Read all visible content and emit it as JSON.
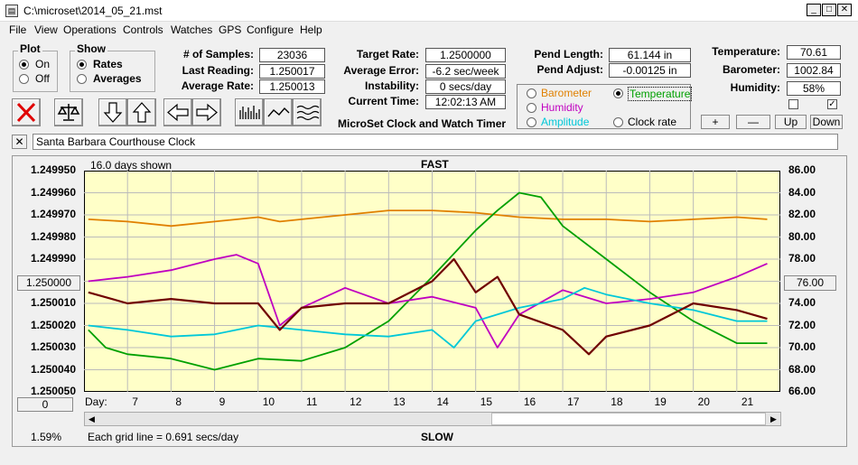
{
  "window": {
    "title": "C:\\microset\\2014_05_21.mst",
    "min": "_",
    "max": "□",
    "close": "✕"
  },
  "menu": [
    "File",
    "View",
    "Operations",
    "Controls",
    "Watches",
    "GPS",
    "Configure",
    "Help"
  ],
  "plot_group": {
    "title": "Plot",
    "on": "On",
    "off": "Off",
    "selected": "On"
  },
  "show_group": {
    "title": "Show",
    "rates": "Rates",
    "averages": "Averages",
    "selected": "Rates"
  },
  "stats": {
    "samples_label": "# of Samples:",
    "samples": "23036",
    "last_label": "Last Reading:",
    "last": "1.250017",
    "avg_label": "Average Rate:",
    "avg": "1.250013",
    "target_label": "Target Rate:",
    "target": "1.2500000",
    "err_label": "Average Error:",
    "err": "-6.2 sec/week",
    "instab_label": "Instability:",
    "instab": "0 secs/day",
    "time_label": "Current Time:",
    "time": "12:02:13 AM",
    "pend_len_label": "Pend Length:",
    "pend_len": "61.144 in",
    "pend_adj_label": "Pend Adjust:",
    "pend_adj": "-0.00125 in",
    "temp_label": "Temperature:",
    "temp": "70.61",
    "baro_label": "Barometer:",
    "baro": "1002.84",
    "hum_label": "Humidity:",
    "hum": "58%"
  },
  "app_caption": "MicroSet Clock and Watch Timer",
  "aux": {
    "barometer": "Barometer",
    "temperature": "Temperature",
    "humidity": "Humidity",
    "amplitude": "Amplitude",
    "clock_rate": "Clock rate",
    "selected": "Temperature",
    "colors": {
      "barometer": "#e08000",
      "temperature": "#00a000",
      "humidity": "#c000c0",
      "amplitude": "#00c8d8"
    }
  },
  "adj_buttons": {
    "plus": "+",
    "minus": "—",
    "up": "Up",
    "down": "Down"
  },
  "description": {
    "close": "✕",
    "value": "Santa Barbara Courthouse Clock"
  },
  "chart_data": {
    "type": "line",
    "top_label": "FAST",
    "bottom_label": "SLOW",
    "days_shown": "16.0 days shown",
    "grid_note": "Each grid line = 0.691 secs/day",
    "percent": "1.59%",
    "day_label": "Day:",
    "x_days": [
      "7",
      "8",
      "9",
      "10",
      "11",
      "12",
      "13",
      "14",
      "15",
      "16",
      "17",
      "18",
      "19",
      "20",
      "21"
    ],
    "left_ticks": [
      "1.249950",
      "1.249960",
      "1.249970",
      "1.249980",
      "1.249990",
      "1.250000",
      "1.250010",
      "1.250020",
      "1.250030",
      "1.250040",
      "1.250050"
    ],
    "right_ticks": [
      "86.00",
      "84.00",
      "82.00",
      "80.00",
      "78.00",
      "76.00",
      "74.00",
      "72.00",
      "70.00",
      "68.00",
      "66.00"
    ],
    "left_center_button": "1.250000",
    "right_center_button": "76.00",
    "left_bottom_button": "0",
    "series": [
      {
        "name": "Barometer",
        "color": "#e08000",
        "x": [
          6.1,
          7,
          8,
          9,
          10,
          10.5,
          11,
          12,
          13,
          14,
          15,
          16,
          17,
          18,
          19,
          20,
          21,
          21.7
        ],
        "y": [
          1.249972,
          1.249973,
          1.249975,
          1.249973,
          1.249971,
          1.249973,
          1.249972,
          1.24997,
          1.249968,
          1.249968,
          1.249969,
          1.249971,
          1.249972,
          1.249972,
          1.249973,
          1.249972,
          1.249971,
          1.249972
        ]
      },
      {
        "name": "Temperature",
        "color": "#00a000",
        "x": [
          6.1,
          6.5,
          7,
          8,
          9,
          10,
          11,
          12,
          13,
          14,
          15,
          15.5,
          16,
          16.5,
          17,
          18,
          19,
          20,
          21,
          21.7
        ],
        "y": [
          1.250022,
          1.25003,
          1.250033,
          1.250035,
          1.25004,
          1.250035,
          1.250036,
          1.25003,
          1.250018,
          1.249998,
          1.249977,
          1.249968,
          1.24996,
          1.249962,
          1.249975,
          1.24999,
          1.250005,
          1.250018,
          1.250028,
          1.250028
        ]
      },
      {
        "name": "Humidity",
        "color": "#c000c0",
        "x": [
          6.1,
          7,
          8,
          9,
          9.5,
          10,
          10.5,
          11,
          12,
          13,
          14,
          15,
          15.5,
          16,
          17,
          18,
          19,
          20,
          21,
          21.7
        ],
        "y": [
          1.25,
          1.249998,
          1.249995,
          1.24999,
          1.249988,
          1.249992,
          1.25002,
          1.250012,
          1.250003,
          1.25001,
          1.250007,
          1.250012,
          1.25003,
          1.250015,
          1.250004,
          1.25001,
          1.250008,
          1.250005,
          1.249998,
          1.249992
        ]
      },
      {
        "name": "Amplitude",
        "color": "#00c8d8",
        "x": [
          6.1,
          7,
          8,
          9,
          10,
          11,
          12,
          13,
          14,
          14.5,
          15,
          16,
          17,
          17.5,
          18,
          19,
          20,
          21,
          21.7
        ],
        "y": [
          1.25002,
          1.250022,
          1.250025,
          1.250024,
          1.25002,
          1.250022,
          1.250024,
          1.250025,
          1.250022,
          1.25003,
          1.250018,
          1.250012,
          1.250008,
          1.250003,
          1.250006,
          1.25001,
          1.250013,
          1.250018,
          1.250018
        ]
      },
      {
        "name": "Clock rate",
        "color": "#700000",
        "x": [
          6.1,
          7,
          8,
          9,
          10,
          10.5,
          11,
          12,
          13,
          14,
          14.5,
          15,
          15.5,
          16,
          17,
          17.6,
          18,
          19,
          20,
          21,
          21.7
        ],
        "y": [
          1.250005,
          1.25001,
          1.250008,
          1.25001,
          1.25001,
          1.250022,
          1.250012,
          1.25001,
          1.25001,
          1.25,
          1.24999,
          1.250005,
          1.249998,
          1.250015,
          1.250022,
          1.250033,
          1.250025,
          1.25002,
          1.25001,
          1.250013,
          1.250017
        ]
      }
    ],
    "ylim": [
      1.24995,
      1.25005
    ],
    "xlim": [
      6.0,
      22.0
    ],
    "right_ylim": [
      66.0,
      86.0
    ],
    "grid": true,
    "background": "#ffffc8"
  }
}
